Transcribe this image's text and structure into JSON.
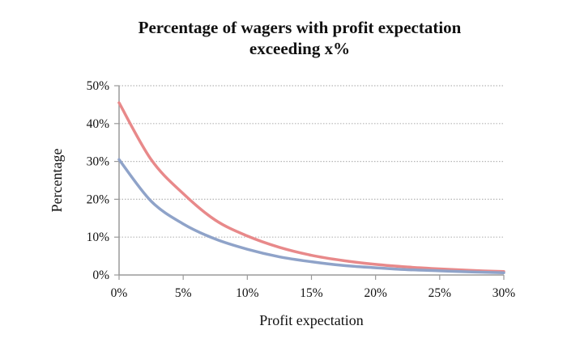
{
  "chart_data": {
    "type": "line",
    "title": "Percentage of wagers with profit expectation",
    "subtitle": "exceeding x%",
    "xlabel": "Profit expectation",
    "ylabel": "Percentage",
    "x_ticks": [
      "0%",
      "5%",
      "10%",
      "15%",
      "20%",
      "25%",
      "30%"
    ],
    "y_ticks": [
      "0%",
      "10%",
      "20%",
      "30%",
      "40%",
      "50%"
    ],
    "xlim": [
      0,
      30
    ],
    "ylim": [
      0,
      50
    ],
    "grid": "horizontal dotted",
    "legend": "none",
    "series": [
      {
        "color": "#e8898a",
        "x": [
          0,
          2.5,
          5,
          7.5,
          10,
          12.5,
          15,
          17.5,
          20,
          22.5,
          25,
          27.5,
          30
        ],
        "values": [
          45.5,
          30.5,
          21.5,
          14.5,
          10.3,
          7.3,
          5.2,
          3.8,
          2.8,
          2.1,
          1.6,
          1.2,
          0.9
        ]
      },
      {
        "color": "#8fa3c9",
        "x": [
          0,
          2.5,
          5,
          7.5,
          10,
          12.5,
          15,
          17.5,
          20,
          22.5,
          25,
          27.5,
          30
        ],
        "values": [
          30.5,
          19.5,
          13.5,
          9.5,
          6.8,
          4.8,
          3.5,
          2.5,
          1.9,
          1.4,
          1.1,
          0.8,
          0.6
        ]
      }
    ]
  }
}
